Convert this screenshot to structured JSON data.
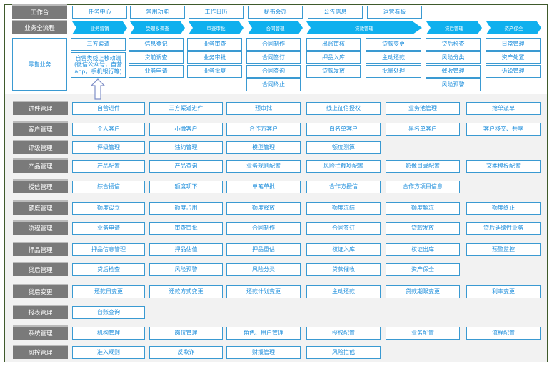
{
  "workbench": {
    "label": "工作台",
    "items": [
      "任务中心",
      "常用功能",
      "工作日历",
      "秘书会办",
      "公告信息",
      "运营看板"
    ]
  },
  "process": {
    "label": "业务全流程",
    "stages": [
      "业务营销",
      "受理＆调查",
      "审查审批",
      "合同管理",
      "贷款管理",
      "贷后管理",
      "资产保全"
    ]
  },
  "retail": {
    "label": "零售业务",
    "columns": [
      [
        "三方渠道",
        "自营类线上移动端(微信公众号，自营app，手机银行等)"
      ],
      [
        "信息登记",
        "贷前调查",
        "业务申请"
      ],
      [
        "业务审查",
        "业务审批",
        "业务批复"
      ],
      [
        "合同制作",
        "合同签订",
        "合同查询",
        "合同终止"
      ],
      [
        "出账审核",
        "押品入库",
        "贷款发放"
      ],
      [
        "贷款变更",
        "主动还款",
        "批量处理"
      ],
      [
        "贷后检查",
        "风险分类",
        "催收管理",
        "风险预警"
      ],
      [
        "日常管理",
        "资产处置",
        "诉讼管理"
      ]
    ]
  },
  "modules": [
    {
      "label": "进件管理",
      "items": [
        "自营进件",
        "三方渠道进件",
        "预审批",
        "线上征信授权",
        "业务池管理",
        "抢单派单"
      ]
    },
    {
      "label": "客户管理",
      "items": [
        "个人客户",
        "小微客户",
        "合作方客户",
        "白名单客户",
        "黑名单客户",
        "客户移交、共享"
      ]
    },
    {
      "label": "评级管理",
      "items": [
        "评级管理",
        "违约管理",
        "模型管理",
        "额度测算"
      ]
    },
    {
      "label": "产品管理",
      "items": [
        "产品配置",
        "产品查询",
        "业务规则配置",
        "风险拦截项配置",
        "影像目录配置",
        "文本模板配置"
      ]
    },
    {
      "label": "授信管理",
      "items": [
        "综合授信",
        "额度项下",
        "单笔单批",
        "合作方授信",
        "合作方项目信息"
      ]
    },
    {
      "label": "额度管理",
      "items": [
        "额度设立",
        "额度占用",
        "额度释放",
        "额度冻结",
        "额度解冻",
        "额度终止"
      ]
    },
    {
      "label": "流程管理",
      "items": [
        "业务申请",
        "审查审批",
        "合同制作",
        "合同签订",
        "贷款发放",
        "贷后延续性业务"
      ]
    },
    {
      "label": "押品管理",
      "items": [
        "押品信息管理",
        "押品估值",
        "押品重估",
        "权证入库",
        "权证出库",
        "预警监控"
      ]
    },
    {
      "label": "贷后管理",
      "items": [
        "贷后检查",
        "风险预警",
        "风险分类",
        "贷款催收",
        "资产保全"
      ]
    },
    {
      "label": "贷后变更",
      "items": [
        "还款日变更",
        "还款方式变更",
        "还款计划变更",
        "主动还款",
        "贷款期限变更",
        "利率变更"
      ]
    },
    {
      "label": "报表管理",
      "items": [
        "台账查询"
      ]
    },
    {
      "label": "系统管理",
      "items": [
        "机构管理",
        "岗位管理",
        "角色、用户管理",
        "授权配置",
        "业务配置",
        "流程配置"
      ]
    },
    {
      "label": "风控管理",
      "items": [
        "准入规则",
        "反欺诈",
        "财报管理",
        "风险拦截"
      ]
    }
  ],
  "colors": {
    "accent": "#0fb0ee",
    "border": "#3a9ad2",
    "text": "#1f8fdc",
    "label_bg": "#7a7a7a"
  }
}
